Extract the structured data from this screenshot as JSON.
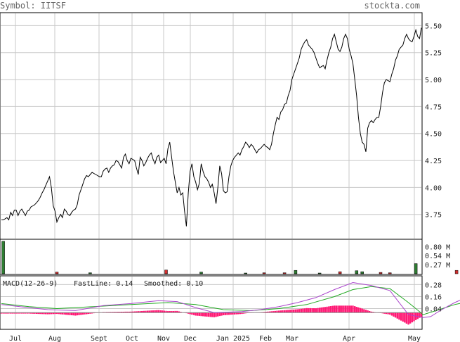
{
  "header": {
    "symbol_label": "Symbol: IITSF",
    "site": "stockta.com"
  },
  "macd_legend": {
    "title": "MACD(12-26-9)",
    "fast": "FastLine: 0.14",
    "smoothed": "Smoothed: 0.10"
  },
  "colors": {
    "price_line": "#000000",
    "grid": "#c8c8c8",
    "volume_up": "#2e7d32",
    "volume_down": "#d32f2f",
    "macd_fast": "#aa44cc",
    "macd_signal": "#22aa22",
    "macd_hist": "#ff1a75",
    "macd_zero": "#888888"
  },
  "chart_data": [
    {
      "type": "line",
      "name": "price",
      "ylim": [
        3.52,
        5.62
      ],
      "yticks": [
        "5.50",
        "5.25",
        "5.00",
        "4.75",
        "4.50",
        "4.25",
        "4.00",
        "3.75"
      ],
      "xlabels": [
        "Jul",
        "Aug",
        "Sept",
        "Oct",
        "Nov",
        "Dec",
        "Jan 2025",
        "Feb",
        "Mar",
        "Apr",
        "May"
      ],
      "series": [
        {
          "values": [
            3.7,
            3.7,
            3.71,
            3.72,
            3.7,
            3.77,
            3.74,
            3.79,
            3.79,
            3.74,
            3.78,
            3.8,
            3.77,
            3.74,
            3.78,
            3.79,
            3.82,
            3.83,
            3.84,
            3.86,
            3.88,
            3.91,
            3.95,
            3.98,
            4.02,
            4.06,
            4.1,
            4.0,
            3.83,
            3.78,
            3.68,
            3.72,
            3.75,
            3.72,
            3.8,
            3.78,
            3.75,
            3.74,
            3.77,
            3.79,
            3.8,
            3.84,
            3.93,
            3.98,
            4.03,
            4.08,
            4.11,
            4.1,
            4.12,
            4.14,
            4.13,
            4.12,
            4.11,
            4.1,
            4.1,
            4.15,
            4.17,
            4.18,
            4.14,
            4.18,
            4.2,
            4.21,
            4.25,
            4.24,
            4.21,
            4.18,
            4.28,
            4.31,
            4.25,
            4.22,
            4.27,
            4.26,
            4.25,
            4.18,
            4.12,
            4.28,
            4.25,
            4.2,
            4.23,
            4.27,
            4.3,
            4.32,
            4.26,
            4.22,
            4.28,
            4.3,
            4.23,
            4.25,
            4.27,
            4.22,
            4.36,
            4.42,
            4.28,
            4.15,
            4.05,
            3.95,
            4.0,
            3.93,
            3.95,
            3.78,
            3.64,
            3.95,
            4.15,
            4.22,
            4.1,
            4.05,
            3.98,
            4.04,
            4.22,
            4.15,
            4.1,
            4.08,
            4.05,
            4.0,
            4.03,
            3.95,
            3.85,
            4.0,
            4.2,
            4.13,
            3.97,
            3.95,
            3.96,
            4.1,
            4.2,
            4.25,
            4.28,
            4.3,
            4.32,
            4.3,
            4.35,
            4.38,
            4.42,
            4.4,
            4.37,
            4.4,
            4.38,
            4.35,
            4.32,
            4.35,
            4.36,
            4.38,
            4.4,
            4.38,
            4.37,
            4.35,
            4.4,
            4.5,
            4.58,
            4.65,
            4.63,
            4.7,
            4.72,
            4.77,
            4.78,
            4.85,
            4.9,
            5.0,
            5.05,
            5.1,
            5.15,
            5.2,
            5.28,
            5.32,
            5.35,
            5.37,
            5.32,
            5.3,
            5.28,
            5.25,
            5.2,
            5.15,
            5.11,
            5.12,
            5.13,
            5.1,
            5.18,
            5.25,
            5.3,
            5.38,
            5.42,
            5.35,
            5.28,
            5.26,
            5.3,
            5.38,
            5.42,
            5.38,
            5.28,
            5.22,
            5.15,
            5.0,
            4.85,
            4.65,
            4.5,
            4.42,
            4.4,
            4.33,
            4.55,
            4.6,
            4.62,
            4.6,
            4.63,
            4.65,
            4.65,
            4.75,
            4.88,
            4.97,
            5.0,
            4.99,
            4.98,
            5.05,
            5.1,
            5.18,
            5.22,
            5.28,
            5.3,
            5.32,
            5.38,
            5.42,
            5.38,
            5.36,
            5.35,
            5.4,
            5.46,
            5.4,
            5.38,
            5.48
          ]
        }
      ]
    },
    {
      "type": "bar",
      "name": "volume",
      "unit": "M",
      "ylim": [
        0,
        1.0
      ],
      "yticks": [
        "0.80 M",
        "0.54 M",
        "0.27 M"
      ],
      "bars": [
        {
          "i": 1,
          "v": 0.96,
          "dir": "up"
        },
        {
          "i": 30,
          "v": 0.05,
          "dir": "down"
        },
        {
          "i": 48,
          "v": 0.03,
          "dir": "up"
        },
        {
          "i": 89,
          "v": 0.11,
          "dir": "down"
        },
        {
          "i": 108,
          "v": 0.05,
          "dir": "up"
        },
        {
          "i": 132,
          "v": 0.02,
          "dir": "up"
        },
        {
          "i": 142,
          "v": 0.03,
          "dir": "down"
        },
        {
          "i": 153,
          "v": 0.03,
          "dir": "down"
        },
        {
          "i": 159,
          "v": 0.1,
          "dir": "up"
        },
        {
          "i": 172,
          "v": 0.02,
          "dir": "up"
        },
        {
          "i": 183,
          "v": 0.06,
          "dir": "down"
        },
        {
          "i": 192,
          "v": 0.09,
          "dir": "up"
        },
        {
          "i": 195,
          "v": 0.06,
          "dir": "up"
        },
        {
          "i": 205,
          "v": 0.04,
          "dir": "down"
        },
        {
          "i": 210,
          "v": 0.03,
          "dir": "down"
        },
        {
          "i": 224,
          "v": 0.3,
          "dir": "up"
        },
        {
          "i": 246,
          "v": 0.1,
          "dir": "down"
        }
      ]
    },
    {
      "type": "line",
      "name": "MACD",
      "ylim": [
        -0.16,
        0.36
      ],
      "yticks": [
        "0.28",
        "0.16",
        "0.04"
      ],
      "fast_points": [
        [
          0,
          0.08
        ],
        [
          10,
          0.06
        ],
        [
          25,
          0.03
        ],
        [
          40,
          0.02
        ],
        [
          55,
          0.07
        ],
        [
          70,
          0.09
        ],
        [
          85,
          0.12
        ],
        [
          95,
          0.11
        ],
        [
          105,
          0.05
        ],
        [
          115,
          0.0
        ],
        [
          130,
          0.01
        ],
        [
          140,
          0.03
        ],
        [
          150,
          0.06
        ],
        [
          160,
          0.1
        ],
        [
          170,
          0.15
        ],
        [
          180,
          0.23
        ],
        [
          190,
          0.3
        ],
        [
          200,
          0.27
        ],
        [
          210,
          0.22
        ],
        [
          220,
          -0.02
        ],
        [
          228,
          -0.05
        ],
        [
          232,
          -0.04
        ],
        [
          238,
          0.03
        ],
        [
          245,
          0.1
        ],
        [
          250,
          0.14
        ]
      ],
      "signal_points": [
        [
          0,
          0.09
        ],
        [
          15,
          0.06
        ],
        [
          30,
          0.04
        ],
        [
          50,
          0.06
        ],
        [
          70,
          0.08
        ],
        [
          90,
          0.1
        ],
        [
          105,
          0.08
        ],
        [
          120,
          0.03
        ],
        [
          135,
          0.02
        ],
        [
          150,
          0.04
        ],
        [
          165,
          0.08
        ],
        [
          180,
          0.16
        ],
        [
          190,
          0.23
        ],
        [
          200,
          0.26
        ],
        [
          210,
          0.24
        ],
        [
          220,
          0.1
        ],
        [
          228,
          -0.02
        ],
        [
          235,
          0.02
        ],
        [
          245,
          0.08
        ],
        [
          250,
          0.1
        ]
      ]
    }
  ]
}
